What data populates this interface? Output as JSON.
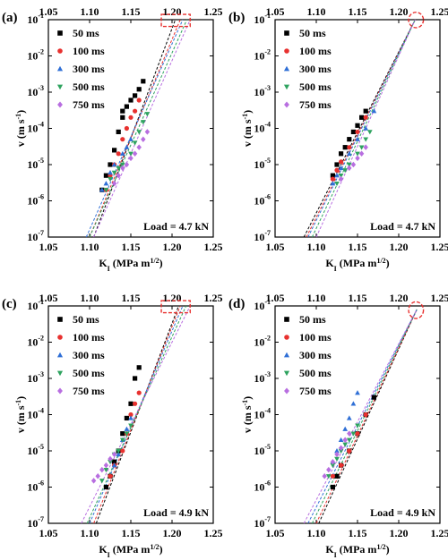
{
  "chart_data": [
    {
      "type": "scatter",
      "panel_label": "(a)",
      "xlabel": "K_I (MPa m^1/2)",
      "ylabel": "v (m s^-1)",
      "xlim": [
        1.05,
        1.25
      ],
      "ylim": [
        1e-07,
        0.1
      ],
      "y_scale": "log",
      "x_ticks": [
        "1.05",
        "1.10",
        "1.15",
        "1.20",
        "1.25"
      ],
      "y_ticks": [
        "10-7",
        "10-6",
        "10-5",
        "10-4",
        "10-3",
        "10-2",
        "10-1"
      ],
      "annotation": "Load = 4.7 kN",
      "highlight": {
        "shape": "rect",
        "x": [
          1.187,
          1.222
        ],
        "y": [
          0.065,
          0.14
        ]
      },
      "series": [
        {
          "name": "50 ms",
          "color": "#000000",
          "marker": "square",
          "fit": [
            [
              1.105,
              1e-07
            ],
            [
              1.204,
              0.1
            ]
          ],
          "x": [
            1.115,
            1.12,
            1.125,
            1.13,
            1.135,
            1.14,
            1.14,
            1.145,
            1.15,
            1.155,
            1.16,
            1.165
          ],
          "y": [
            2e-06,
            5e-06,
            1e-05,
            2.5e-05,
            8e-05,
            0.0002,
            0.0003,
            0.0004,
            0.0006,
            0.0008,
            0.0012,
            0.002
          ]
        },
        {
          "name": "100 ms",
          "color": "#e8312f",
          "marker": "circle",
          "fit": [
            [
              1.1,
              1e-07
            ],
            [
              1.21,
              0.1
            ]
          ],
          "x": [
            1.12,
            1.125,
            1.13,
            1.135,
            1.14,
            1.145,
            1.15,
            1.155,
            1.16
          ],
          "y": [
            2e-06,
            5e-06,
            1e-05,
            2e-05,
            5e-05,
            0.0001,
            0.0002,
            0.0003,
            0.0006
          ]
        },
        {
          "name": "300 ms",
          "color": "#2f6fd6",
          "marker": "triangle-up",
          "fit": [
            [
              1.096,
              1e-07
            ],
            [
              1.213,
              0.1
            ]
          ],
          "x": [
            1.115,
            1.12,
            1.125,
            1.13,
            1.14,
            1.145,
            1.15
          ],
          "y": [
            2e-06,
            3e-06,
            6e-06,
            1e-05,
            2e-05,
            3e-05,
            5e-05
          ]
        },
        {
          "name": "500 ms",
          "color": "#2ea35f",
          "marker": "triangle-down",
          "fit": [
            [
              1.1,
              1e-07
            ],
            [
              1.218,
              0.1
            ]
          ],
          "x": [
            1.12,
            1.125,
            1.13,
            1.135,
            1.14,
            1.15,
            1.155,
            1.16,
            1.165,
            1.17
          ],
          "y": [
            2e-06,
            4e-06,
            6e-06,
            8e-06,
            1e-05,
            2e-05,
            4e-05,
            8e-05,
            0.00015,
            0.00025
          ]
        },
        {
          "name": "750 ms",
          "color": "#b86ee0",
          "marker": "diamond",
          "fit": [
            [
              1.105,
              1e-07
            ],
            [
              1.222,
              0.1
            ]
          ],
          "x": [
            1.13,
            1.135,
            1.14,
            1.145,
            1.15,
            1.155,
            1.16,
            1.165,
            1.17
          ],
          "y": [
            3e-06,
            5e-06,
            8e-06,
            1e-05,
            1.5e-05,
            2e-05,
            3e-05,
            5e-05,
            8e-05
          ]
        }
      ]
    },
    {
      "type": "scatter",
      "panel_label": "(b)",
      "xlabel": "K_I (MPa m^1/2)",
      "ylabel": "v (m s^-1)",
      "xlim": [
        1.05,
        1.25
      ],
      "ylim": [
        1e-07,
        0.1
      ],
      "y_scale": "log",
      "x_ticks": [
        "1.05",
        "1.10",
        "1.15",
        "1.20",
        "1.25"
      ],
      "y_ticks": [
        "10-7",
        "10-6",
        "10-5",
        "10-4",
        "10-3",
        "10-2",
        "10-1"
      ],
      "annotation": "Load = 4.7 kN",
      "highlight": {
        "shape": "ellipse",
        "x": [
          1.212,
          1.23
        ],
        "y": [
          0.06,
          0.16
        ]
      },
      "series": [
        {
          "name": "50 ms",
          "color": "#000000",
          "marker": "square",
          "fit": [
            [
              1.085,
              1e-07
            ],
            [
              1.22,
              0.1
            ]
          ],
          "x": [
            1.12,
            1.125,
            1.13,
            1.135,
            1.14,
            1.145,
            1.15,
            1.155,
            1.16
          ],
          "y": [
            5e-06,
            1e-05,
            2e-05,
            3e-05,
            5e-05,
            8e-05,
            0.00012,
            0.0002,
            0.0003
          ]
        },
        {
          "name": "100 ms",
          "color": "#e8312f",
          "marker": "circle",
          "fit": [
            [
              1.088,
              1e-07
            ],
            [
              1.22,
              0.1
            ]
          ],
          "x": [
            1.12,
            1.125,
            1.13,
            1.14,
            1.15,
            1.16
          ],
          "y": [
            4e-06,
            7e-06,
            1.2e-05,
            3e-05,
            8e-05,
            0.0002
          ]
        },
        {
          "name": "300 ms",
          "color": "#2f6fd6",
          "marker": "triangle-up",
          "fit": [
            [
              1.09,
              1e-07
            ],
            [
              1.22,
              0.1
            ]
          ],
          "x": [
            1.12,
            1.125,
            1.13,
            1.14,
            1.15,
            1.16,
            1.17
          ],
          "y": [
            3e-06,
            5e-06,
            8e-06,
            2e-05,
            5e-05,
            0.0001,
            0.0003
          ]
        },
        {
          "name": "500 ms",
          "color": "#2ea35f",
          "marker": "triangle-down",
          "fit": [
            [
              1.095,
              1e-07
            ],
            [
              1.22,
              0.1
            ]
          ],
          "x": [
            1.125,
            1.13,
            1.135,
            1.14,
            1.15,
            1.155,
            1.16,
            1.165
          ],
          "y": [
            3e-06,
            5e-06,
            7e-06,
            1e-05,
            2e-05,
            3e-05,
            5e-05,
            8e-05
          ]
        },
        {
          "name": "750 ms",
          "color": "#b86ee0",
          "marker": "diamond",
          "fit": [
            [
              1.1,
              1e-07
            ],
            [
              1.22,
              0.1
            ]
          ],
          "x": [
            1.13,
            1.14,
            1.145,
            1.15,
            1.155,
            1.16
          ],
          "y": [
            4e-06,
            8e-06,
            1e-05,
            1.5e-05,
            2e-05,
            3e-05
          ]
        }
      ]
    },
    {
      "type": "scatter",
      "panel_label": "(c)",
      "xlabel": "K_I (MPa m^1/2)",
      "ylabel": "v (m s^-1)",
      "xlim": [
        1.05,
        1.25
      ],
      "ylim": [
        1e-07,
        0.1
      ],
      "y_scale": "log",
      "x_ticks": [
        "1.05",
        "1.10",
        "1.15",
        "1.20",
        "1.25"
      ],
      "y_ticks": [
        "10-7",
        "10-6",
        "10-5",
        "10-4",
        "10-3",
        "10-2",
        "10-1"
      ],
      "annotation": "Load = 4.9 kN",
      "highlight": {
        "shape": "rect",
        "x": [
          1.187,
          1.222
        ],
        "y": [
          0.065,
          0.14
        ]
      },
      "series": [
        {
          "name": "50 ms",
          "color": "#000000",
          "marker": "square",
          "fit": [
            [
              1.108,
              1e-07
            ],
            [
              1.208,
              0.1
            ]
          ],
          "x": [
            1.12,
            1.125,
            1.13,
            1.135,
            1.14,
            1.145,
            1.15,
            1.155,
            1.16
          ],
          "y": [
            1e-06,
            2e-06,
            5e-06,
            1e-05,
            3e-05,
            8e-05,
            0.0002,
            0.001,
            0.002
          ]
        },
        {
          "name": "100 ms",
          "color": "#e8312f",
          "marker": "circle",
          "fit": [
            [
              1.105,
              1e-07
            ],
            [
              1.21,
              0.1
            ]
          ],
          "x": [
            1.125,
            1.13,
            1.14,
            1.145,
            1.15,
            1.155,
            1.16
          ],
          "y": [
            2e-06,
            4e-06,
            1e-05,
            3e-05,
            0.0001,
            0.0002,
            0.0004
          ]
        },
        {
          "name": "300 ms",
          "color": "#2f6fd6",
          "marker": "triangle-up",
          "fit": [
            [
              1.1,
              1e-07
            ],
            [
              1.213,
              0.1
            ]
          ],
          "x": [
            1.13,
            1.135,
            1.14,
            1.145,
            1.15
          ],
          "y": [
            4e-06,
            8e-06,
            2e-05,
            4e-05,
            8e-05
          ]
        },
        {
          "name": "500 ms",
          "color": "#2ea35f",
          "marker": "triangle-down",
          "fit": [
            [
              1.097,
              1e-07
            ],
            [
              1.217,
              0.1
            ]
          ],
          "x": [
            1.115,
            1.12,
            1.125,
            1.13,
            1.135,
            1.14,
            1.145,
            1.15
          ],
          "y": [
            1.5e-06,
            3e-06,
            5e-06,
            8e-06,
            1e-05,
            2e-05,
            3e-05,
            5e-05
          ]
        },
        {
          "name": "750 ms",
          "color": "#b86ee0",
          "marker": "diamond",
          "fit": [
            [
              1.09,
              1e-07
            ],
            [
              1.222,
              0.1
            ]
          ],
          "x": [
            1.105,
            1.11,
            1.115,
            1.12,
            1.125,
            1.13
          ],
          "y": [
            1.5e-06,
            2e-06,
            3e-06,
            4e-06,
            6e-06,
            8e-06
          ]
        }
      ]
    },
    {
      "type": "scatter",
      "panel_label": "(d)",
      "xlabel": "K_I (MPa m^1/2)",
      "ylabel": "v (m s^-1)",
      "xlim": [
        1.05,
        1.25
      ],
      "ylim": [
        1e-07,
        0.1
      ],
      "y_scale": "log",
      "x_ticks": [
        "1.05",
        "1.10",
        "1.15",
        "1.20",
        "1.25"
      ],
      "y_ticks": [
        "10-7",
        "10-6",
        "10-5",
        "10-4",
        "10-3",
        "10-2",
        "10-1"
      ],
      "annotation": "Load = 4.9 kN",
      "highlight": {
        "shape": "ellipse",
        "x": [
          1.212,
          1.23
        ],
        "y": [
          0.045,
          0.13
        ]
      },
      "series": [
        {
          "name": "50 ms",
          "color": "#000000",
          "marker": "square",
          "fit": [
            [
              1.103,
              1e-07
            ],
            [
              1.222,
              0.08
            ]
          ],
          "x": [
            1.12,
            1.125,
            1.13,
            1.14,
            1.15,
            1.16,
            1.17
          ],
          "y": [
            1e-06,
            2e-06,
            4e-06,
            1e-05,
            3e-05,
            0.0001,
            0.0003
          ]
        },
        {
          "name": "100 ms",
          "color": "#e8312f",
          "marker": "circle",
          "fit": [
            [
              1.1,
              1e-07
            ],
            [
              1.222,
              0.08
            ]
          ],
          "x": [
            1.12,
            1.13,
            1.14,
            1.15,
            1.16
          ],
          "y": [
            2e-06,
            4e-06,
            1e-05,
            3e-05,
            0.0001
          ]
        },
        {
          "name": "300 ms",
          "color": "#2f6fd6",
          "marker": "triangle-up",
          "fit": [
            [
              1.09,
              1e-07
            ],
            [
              1.222,
              0.08
            ]
          ],
          "x": [
            1.12,
            1.125,
            1.13,
            1.135,
            1.14,
            1.145,
            1.15
          ],
          "y": [
            5e-06,
            1e-05,
            2e-05,
            4e-05,
            8e-05,
            0.0002,
            0.0004
          ]
        },
        {
          "name": "500 ms",
          "color": "#2ea35f",
          "marker": "triangle-down",
          "fit": [
            [
              1.095,
              1e-07
            ],
            [
              1.222,
              0.08
            ]
          ],
          "x": [
            1.115,
            1.12,
            1.125,
            1.13,
            1.135,
            1.14,
            1.145,
            1.15
          ],
          "y": [
            2e-06,
            4e-06,
            6e-06,
            1e-05,
            1.5e-05,
            2e-05,
            3e-05,
            5e-05
          ]
        },
        {
          "name": "750 ms",
          "color": "#b86ee0",
          "marker": "diamond",
          "fit": [
            [
              1.085,
              1e-07
            ],
            [
              1.222,
              0.08
            ]
          ],
          "x": [
            1.11,
            1.115,
            1.12,
            1.125,
            1.13,
            1.135,
            1.14
          ],
          "y": [
            2e-06,
            3e-06,
            5e-06,
            8e-06,
            1.2e-05,
            2e-05,
            3e-05
          ]
        }
      ]
    }
  ]
}
